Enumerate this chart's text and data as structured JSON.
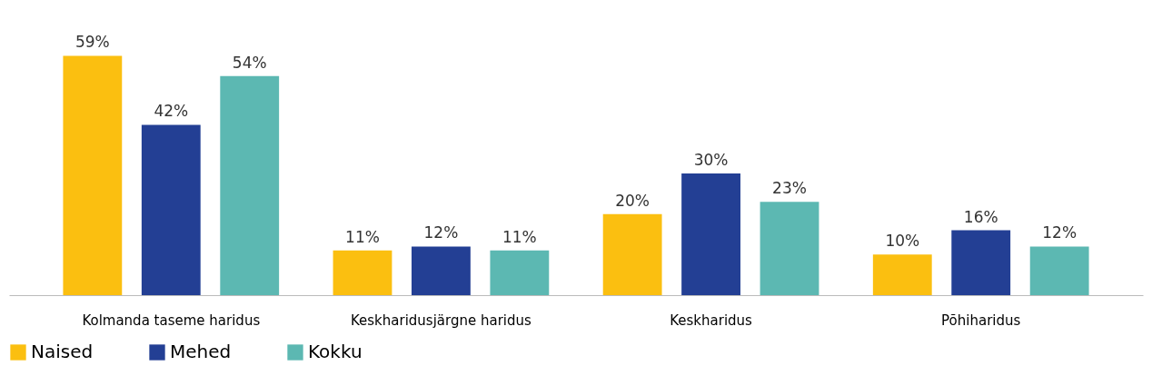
{
  "chart_data": {
    "type": "bar",
    "categories": [
      "Kolmanda taseme haridus",
      "Keskharidusjärgne haridus",
      "Keskharidus",
      "Põhiharidus"
    ],
    "series": [
      {
        "name": "Naised",
        "color": "#fbbf10",
        "values": [
          59,
          11,
          20,
          10
        ],
        "value_labels": [
          "59%",
          "11%",
          "20%",
          "10%"
        ]
      },
      {
        "name": "Mehed",
        "color": "#233f94",
        "values": [
          42,
          12,
          30,
          16
        ],
        "value_labels": [
          "42%",
          "12%",
          "30%",
          "16%"
        ]
      },
      {
        "name": "Kokku",
        "color": "#5cb8b2",
        "values": [
          54,
          11,
          23,
          12
        ],
        "value_labels": [
          "54%",
          "11%",
          "23%",
          "12%"
        ]
      }
    ],
    "grid": false,
    "legend": "bottom"
  }
}
